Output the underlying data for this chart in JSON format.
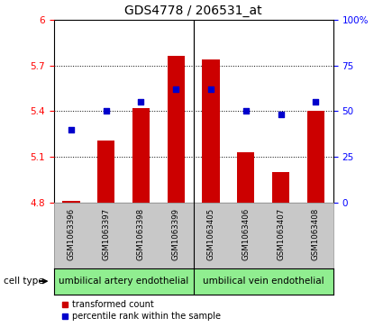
{
  "title": "GDS4778 / 206531_at",
  "samples": [
    "GSM1063396",
    "GSM1063397",
    "GSM1063398",
    "GSM1063399",
    "GSM1063405",
    "GSM1063406",
    "GSM1063407",
    "GSM1063408"
  ],
  "bar_values": [
    4.81,
    5.21,
    5.42,
    5.76,
    5.74,
    5.13,
    5.0,
    5.4
  ],
  "percentile_values": [
    40,
    50,
    55,
    62,
    62,
    50,
    48,
    55
  ],
  "bar_bottom": 4.8,
  "ylim_left": [
    4.8,
    6.0
  ],
  "ylim_right": [
    0,
    100
  ],
  "yticks_left": [
    4.8,
    5.1,
    5.4,
    5.7,
    6.0
  ],
  "yticks_right": [
    0,
    25,
    50,
    75,
    100
  ],
  "bar_color": "#cc0000",
  "dot_color": "#0000cc",
  "group1_label": "umbilical artery endothelial",
  "group2_label": "umbilical vein endothelial",
  "group1_count": 4,
  "group2_count": 4,
  "cell_type_label": "cell type",
  "legend1": "transformed count",
  "legend2": "percentile rank within the sample",
  "group_bg_color": "#90ee90",
  "label_bg_color": "#c8c8c8",
  "title_fontsize": 10,
  "tick_fontsize": 7.5,
  "sample_fontsize": 6.2,
  "group_fontsize": 7.5,
  "legend_fontsize": 7
}
